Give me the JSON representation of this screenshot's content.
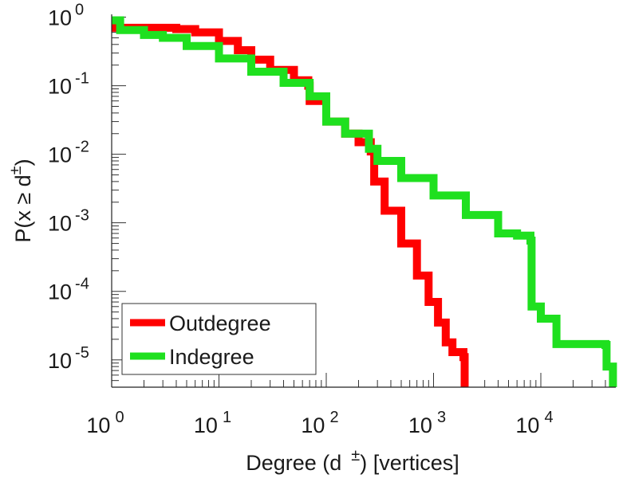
{
  "chart_data": {
    "type": "line",
    "title": "",
    "xlabel": "Degree (d",
    "xlabel_sup": "±",
    "xlabel_tail": ") [vertices]",
    "ylabel": "P(x ≥ d",
    "ylabel_sup": "±",
    "ylabel_tail": ")",
    "xscale": "log",
    "yscale": "log",
    "xlim": [
      1,
      50000
    ],
    "ylim": [
      4e-06,
      1.1
    ],
    "x_tick_labels": [
      {
        "base": "10",
        "exp": "0",
        "value": 1
      },
      {
        "base": "10",
        "exp": "1",
        "value": 10
      },
      {
        "base": "10",
        "exp": "2",
        "value": 100
      },
      {
        "base": "10",
        "exp": "3",
        "value": 1000
      },
      {
        "base": "10",
        "exp": "4",
        "value": 10000
      }
    ],
    "y_tick_labels": [
      {
        "base": "10",
        "exp": "0",
        "value": 1
      },
      {
        "base": "10",
        "exp": "-1",
        "value": 0.1
      },
      {
        "base": "10",
        "exp": "-2",
        "value": 0.01
      },
      {
        "base": "10",
        "exp": "-3",
        "value": 0.001
      },
      {
        "base": "10",
        "exp": "-4",
        "value": 0.0001
      },
      {
        "base": "10",
        "exp": "-5",
        "value": 1e-05
      }
    ],
    "legend_position": "bottom-left",
    "series": [
      {
        "name": "Outdegree",
        "color": "#ff0000",
        "points": [
          [
            1,
            0.7
          ],
          [
            4,
            0.67
          ],
          [
            6,
            0.6
          ],
          [
            10,
            0.45
          ],
          [
            15,
            0.33
          ],
          [
            20,
            0.24
          ],
          [
            30,
            0.17
          ],
          [
            50,
            0.12
          ],
          [
            68,
            0.1
          ],
          [
            70,
            0.06
          ],
          [
            100,
            0.03
          ],
          [
            150,
            0.02
          ],
          [
            200,
            0.015
          ],
          [
            260,
            0.011
          ],
          [
            280,
            0.004
          ],
          [
            350,
            0.0015
          ],
          [
            500,
            0.0005
          ],
          [
            700,
            0.00017
          ],
          [
            900,
            7e-05
          ],
          [
            1100,
            3.5e-05
          ],
          [
            1300,
            1.8e-05
          ],
          [
            1500,
            1.3e-05
          ],
          [
            1900,
            1.1e-05
          ],
          [
            1950,
            4e-06
          ]
        ]
      },
      {
        "name": "Indegree",
        "color": "#1fe01f",
        "points": [
          [
            1,
            0.9
          ],
          [
            1.2,
            0.65
          ],
          [
            2,
            0.55
          ],
          [
            3,
            0.5
          ],
          [
            5,
            0.38
          ],
          [
            10,
            0.25
          ],
          [
            20,
            0.16
          ],
          [
            40,
            0.11
          ],
          [
            70,
            0.07
          ],
          [
            100,
            0.03
          ],
          [
            150,
            0.02
          ],
          [
            250,
            0.012
          ],
          [
            300,
            0.008
          ],
          [
            500,
            0.0045
          ],
          [
            1000,
            0.0025
          ],
          [
            2000,
            0.0013
          ],
          [
            4000,
            0.0007
          ],
          [
            6000,
            0.00065
          ],
          [
            8000,
            0.00055
          ],
          [
            8200,
            6e-05
          ],
          [
            10000,
            4e-05
          ],
          [
            14000,
            1.7e-05
          ],
          [
            30000,
            1.7e-05
          ],
          [
            40000,
            1.65e-05
          ],
          [
            41000,
            8e-06
          ],
          [
            47000,
            4e-06
          ]
        ]
      }
    ]
  }
}
